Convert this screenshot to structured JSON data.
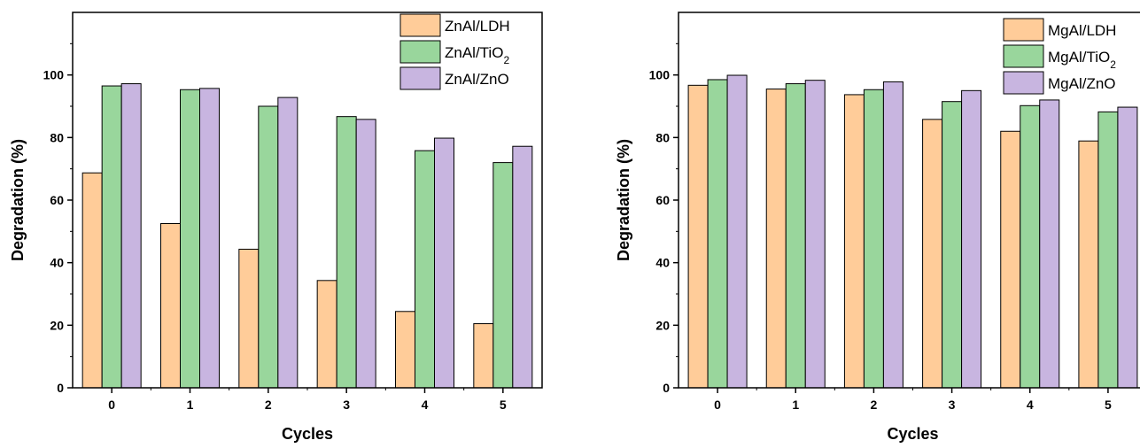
{
  "colors": {
    "series": [
      "#FFCC99",
      "#99D69C",
      "#C8B5E0"
    ],
    "bar_stroke": "#000000",
    "axis": "#000000"
  },
  "chart_data": [
    {
      "type": "bar",
      "categories": [
        "0",
        "1",
        "2",
        "3",
        "4",
        "5"
      ],
      "series": [
        {
          "name": "ZnAl/LDH",
          "name_parts": [
            [
              "ZnAl/LDH",
              false
            ]
          ],
          "values": [
            68.7,
            52.5,
            44.3,
            34.3,
            24.4,
            20.5
          ]
        },
        {
          "name": "ZnAl/TiO2",
          "name_parts": [
            [
              "ZnAl/TiO",
              false
            ],
            [
              "2",
              true
            ]
          ],
          "values": [
            96.5,
            95.3,
            90.0,
            86.7,
            75.8,
            72.0
          ]
        },
        {
          "name": "ZnAl/ZnO",
          "name_parts": [
            [
              "ZnAl/ZnO",
              false
            ]
          ],
          "values": [
            97.2,
            95.7,
            92.8,
            85.8,
            79.8,
            77.2
          ]
        }
      ],
      "xlabel": "Cycles",
      "ylabel": "Degradation (%)",
      "ylim": [
        0,
        120
      ],
      "yticks": [
        0,
        20,
        40,
        60,
        80,
        100
      ],
      "legend_position": "top-right",
      "grid": false
    },
    {
      "type": "bar",
      "categories": [
        "0",
        "1",
        "2",
        "3",
        "4",
        "5"
      ],
      "series": [
        {
          "name": "MgAl/LDH",
          "name_parts": [
            [
              "MgAl/LDH",
              false
            ]
          ],
          "values": [
            96.7,
            95.5,
            93.7,
            85.8,
            82.0,
            78.9
          ]
        },
        {
          "name": "MgAl/TiO2",
          "name_parts": [
            [
              "MgAl/TiO",
              false
            ],
            [
              "2",
              true
            ]
          ],
          "values": [
            98.5,
            97.2,
            95.3,
            91.5,
            90.2,
            88.2
          ]
        },
        {
          "name": "MgAl/ZnO",
          "name_parts": [
            [
              "MgAl/ZnO",
              false
            ]
          ],
          "values": [
            99.9,
            98.3,
            97.8,
            95.0,
            92.0,
            89.7
          ]
        }
      ],
      "xlabel": "Cycles",
      "ylabel": "Degradation (%)",
      "ylim": [
        0,
        120
      ],
      "yticks": [
        0,
        20,
        40,
        60,
        80,
        100
      ],
      "legend_position": "top-right",
      "grid": false
    }
  ]
}
